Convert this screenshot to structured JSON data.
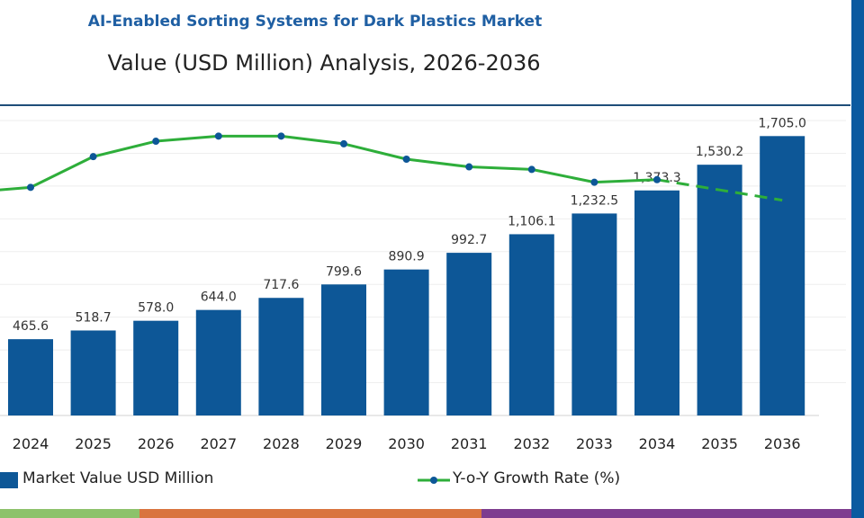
{
  "chart_data": {
    "type": "bar",
    "title": "AI-Enabled Sorting Systems for Dark Plastics Market",
    "subtitle": "Value (USD Million) Analysis, 2026-2036",
    "categories": [
      "2024",
      "2025",
      "2026",
      "2027",
      "2028",
      "2029",
      "2030",
      "2031",
      "2032",
      "2033",
      "2034",
      "2035",
      "2036"
    ],
    "series": [
      {
        "name": "Market Value USD Million",
        "type": "bar",
        "color": "#0d5797",
        "values": [
          465.6,
          518.7,
          578.0,
          644.0,
          717.6,
          799.6,
          890.9,
          992.7,
          1106.1,
          1232.5,
          1373.3,
          1530.2,
          1705.0
        ],
        "labels": [
          "465.6",
          "518.7",
          "578.0",
          "644.0",
          "717.6",
          "799.6",
          "890.9",
          "992.7",
          "1,106.1",
          "1,232.5",
          "1,373.3",
          "1,530.2",
          "1,705.0"
        ]
      },
      {
        "name": "Y-o-Y Growth Rate (%)",
        "type": "line",
        "color": "#2eae3a",
        "marker_color": "#0d5797",
        "values": [
          8.9,
          10.1,
          10.7,
          10.9,
          10.9,
          10.6,
          10.0,
          9.7,
          9.6,
          9.1,
          9.2,
          8.8,
          8.4
        ]
      }
    ],
    "ylim": [
      0,
      1800
    ],
    "grid": true,
    "legend": "bottom",
    "xlabel": "",
    "ylabel": ""
  },
  "colors": {
    "rule": "#1f4e79",
    "side_bar": "#0b5aa0",
    "strip": [
      "#8dc26b",
      "#d9743f",
      "#7e3d8f"
    ]
  }
}
